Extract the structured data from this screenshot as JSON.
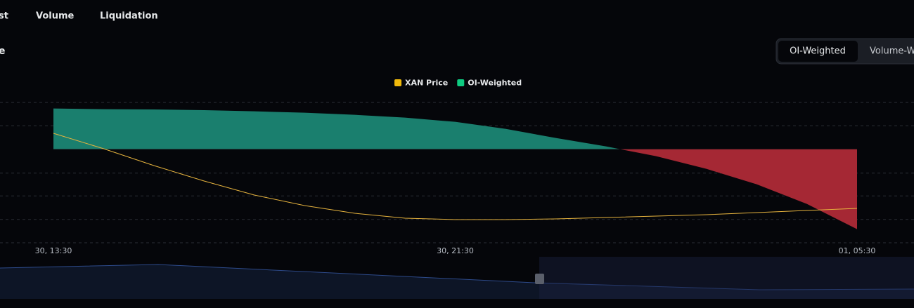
{
  "tabs": [
    "st",
    "Volume",
    "Liquidation"
  ],
  "section_title": "e",
  "toggle": [
    "OI-Weighted",
    "Volume-W"
  ],
  "chart_data": {
    "type": "area",
    "categories": [
      "30, 13:30",
      null,
      null,
      null,
      null,
      null,
      null,
      null,
      "30, 21:30",
      null,
      null,
      null,
      null,
      null,
      null,
      null,
      "01, 05:30"
    ],
    "ylim": [
      -4,
      2
    ],
    "y2lim": [
      0,
      6
    ],
    "grid": true,
    "series": [
      {
        "name": "XAN Price",
        "color": "#f0b90b",
        "line_color": "#e6b33e",
        "axis": "y2",
        "values": [
          4.68,
          4.02,
          3.3,
          2.64,
          2.04,
          1.59,
          1.26,
          1.05,
          0.99,
          0.99,
          1.02,
          1.08,
          1.14,
          1.2,
          1.29,
          1.38,
          1.47
        ]
      },
      {
        "name": "OI-Weighted",
        "color": "#0ecb81",
        "positive_color": "#1a7f6e",
        "negative_color": "#a52834",
        "values": [
          1.74,
          1.71,
          1.7,
          1.67,
          1.62,
          1.56,
          1.47,
          1.35,
          1.17,
          0.87,
          0.48,
          0.12,
          -0.3,
          -0.84,
          -1.5,
          -2.34,
          -3.42
        ]
      }
    ]
  }
}
